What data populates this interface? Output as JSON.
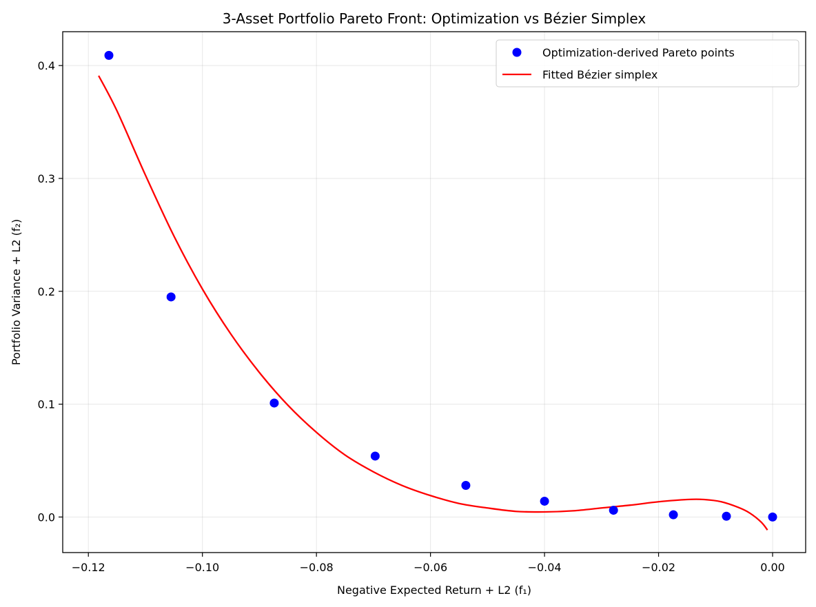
{
  "chart_data": {
    "type": "scatter",
    "title": "3-Asset Portfolio Pareto Front: Optimization vs Bézier Simplex",
    "xlabel": "Negative Expected Return + L2 (f₁)",
    "ylabel": "Portfolio Variance + L2 (f₂)",
    "xlim": [
      -0.1245,
      0.0058
    ],
    "ylim": [
      -0.0315,
      0.43
    ],
    "xticks": [
      -0.12,
      -0.1,
      -0.08,
      -0.06,
      -0.04,
      -0.02,
      0.0
    ],
    "xtick_labels": [
      "−0.12",
      "−0.10",
      "−0.08",
      "−0.06",
      "−0.04",
      "−0.02",
      "0.00"
    ],
    "yticks": [
      0.0,
      0.1,
      0.2,
      0.3,
      0.4
    ],
    "ytick_labels": [
      "0.0",
      "0.1",
      "0.2",
      "0.3",
      "0.4"
    ],
    "grid": true,
    "legend_position": "top-right",
    "series": [
      {
        "name": "Optimization-derived Pareto points",
        "kind": "scatter",
        "color": "#0000ff",
        "x": [
          -0.1164,
          -0.1055,
          -0.0874,
          -0.0697,
          -0.0538,
          -0.04,
          -0.0279,
          -0.0174,
          -0.0081,
          0.0
        ],
        "y": [
          0.409,
          0.195,
          0.101,
          0.054,
          0.028,
          0.014,
          0.006,
          0.002,
          0.0007,
          0.0
        ]
      },
      {
        "name": "Fitted Bézier simplex",
        "kind": "line",
        "color": "#ff0000",
        "x": [
          -0.1182,
          -0.115,
          -0.11,
          -0.105,
          -0.1,
          -0.095,
          -0.09,
          -0.085,
          -0.08,
          -0.075,
          -0.07,
          -0.065,
          -0.06,
          -0.055,
          -0.05,
          -0.045,
          -0.04,
          -0.035,
          -0.03,
          -0.025,
          -0.02,
          -0.015,
          -0.012,
          -0.009,
          -0.006,
          -0.004,
          -0.002,
          -0.0009
        ],
        "y": [
          0.391,
          0.36,
          0.303,
          0.249,
          0.202,
          0.162,
          0.128,
          0.099,
          0.075,
          0.055,
          0.04,
          0.028,
          0.019,
          0.012,
          0.008,
          0.005,
          0.0045,
          0.0055,
          0.008,
          0.0105,
          0.0135,
          0.0155,
          0.0155,
          0.0135,
          0.0085,
          0.0035,
          -0.0045,
          -0.0115
        ]
      }
    ]
  }
}
